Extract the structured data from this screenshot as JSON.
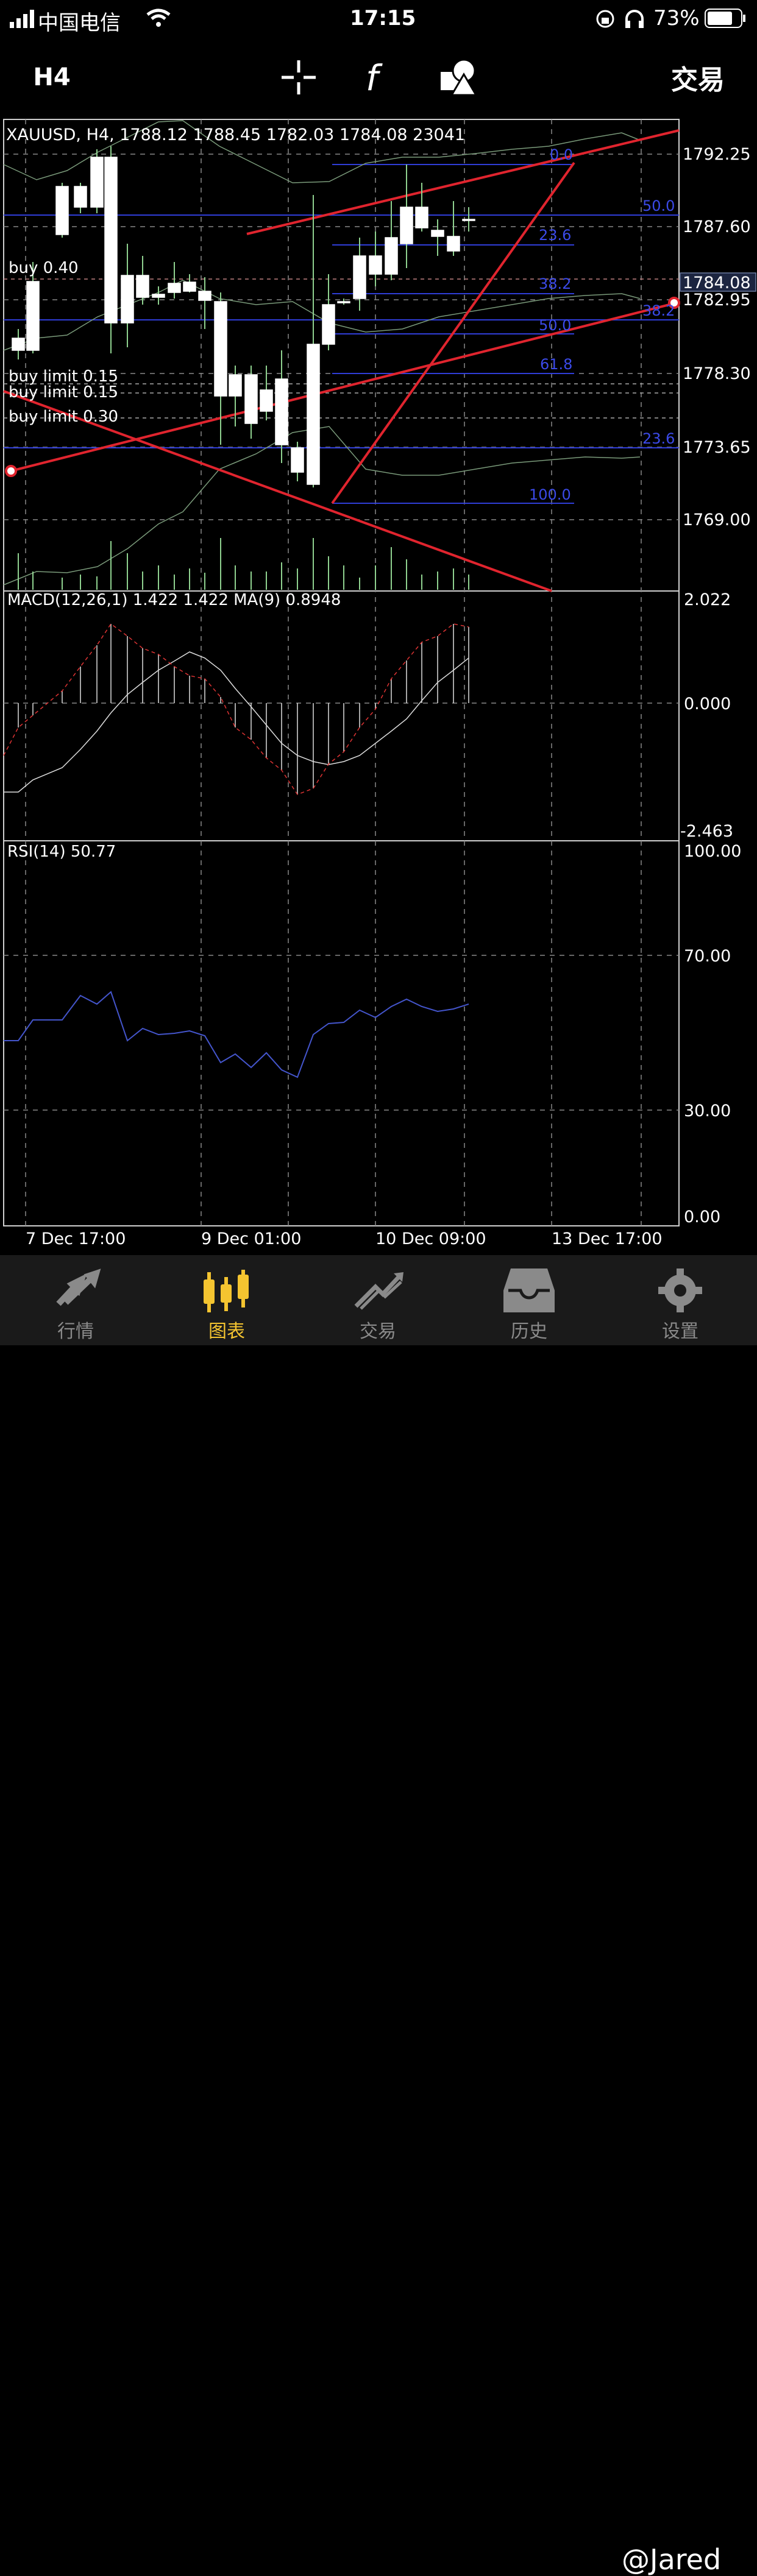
{
  "status_bar": {
    "carrier": "中国电信",
    "time": "17:15",
    "battery": "73%"
  },
  "toolbar": {
    "timeframe": "H4",
    "icons": [
      "crosshair-icon",
      "function-icon",
      "shapes-icon"
    ],
    "trade_label": "交易"
  },
  "main_chart": {
    "header": "XAUUSD, H4, 1788.12 1788.45 1782.03 1784.08 23041",
    "price_labels": [
      "1792.25",
      "1787.60",
      "1782.95",
      "1778.30",
      "1773.65",
      "1769.00"
    ],
    "current_price": "1784.08",
    "order_labels": [
      "buy 0.40",
      "buy limit 0.15",
      "buy limit 0.15",
      "buy limit 0.30"
    ],
    "fib_labels_a": [
      "0.0",
      "23.6",
      "38.2",
      "50.0",
      "61.8",
      "100.0"
    ],
    "fib_labels_b": [
      "50.0",
      "38.2",
      "23.6"
    ],
    "colors": {
      "bull": "#ffffff",
      "bear": "#000000",
      "wick": "#8fd18f",
      "trend": "#e0242e",
      "fib": "#2f3dd6",
      "bands": "#7a9a7a"
    }
  },
  "macd": {
    "header": "MACD(12,26,1) 1.422 1.422 MA(9) 0.8948",
    "scale_labels": [
      "2.022",
      "0.000",
      "-2.463"
    ]
  },
  "rsi": {
    "header": "RSI(14) 50.77",
    "scale_labels": [
      "100.00",
      "70.00",
      "30.00",
      "0.00"
    ],
    "color": "#4455cc"
  },
  "time_axis": [
    "7 Dec 17:00",
    "9 Dec 01:00",
    "10 Dec 09:00",
    "13 Dec 17:00"
  ],
  "tabs": [
    {
      "label": "行情",
      "icon": "quotes-icon"
    },
    {
      "label": "图表",
      "icon": "chart-icon",
      "active": true
    },
    {
      "label": "交易",
      "icon": "trade-icon"
    },
    {
      "label": "历史",
      "icon": "history-icon"
    },
    {
      "label": "设置",
      "icon": "settings-icon"
    }
  ],
  "watermark": "@Jared"
}
